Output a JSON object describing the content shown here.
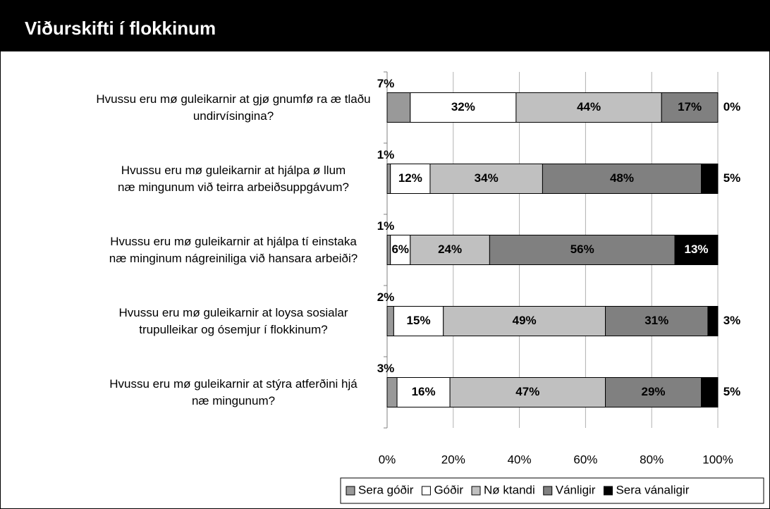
{
  "chart_data": {
    "type": "stacked_barh",
    "title": "Viðurskifti í flokkinum",
    "categories": [
      "Hvussu eru mø guleikarnir at gjø gnumfø ra æ tlaðu\nundirvísingina?",
      "Hvussu eru mø guleikarnir at hjálpa ø llum\nnæ mingunum við teirra arbeiðsuppgávum?",
      "Hvussu eru mø guleikarnir at hjálpa tí einstaka\nnæ minginum nágreiniliga við hansara arbeiði?",
      "Hvussu eru mø guleikarnir at loysa sosialar\ntrupulleikar og ósemjur í flokkinum?",
      "Hvussu eru mø guleikarnir at stýra atferðini hjá\nnæ mingunum?"
    ],
    "series": [
      {
        "name": "Sera góðir",
        "color": "#999999",
        "values": [
          7,
          1,
          1,
          2,
          3
        ],
        "value_labels": [
          "7%",
          "1%",
          "1%",
          "2%",
          "3%"
        ]
      },
      {
        "name": "Góðir",
        "color": "#ffffff",
        "values": [
          32,
          12,
          6,
          15,
          16
        ],
        "value_labels": [
          "32%",
          "12%",
          "6%",
          "15%",
          "16%"
        ]
      },
      {
        "name": "Nø ktandi",
        "color": "#c0c0c0",
        "values": [
          44,
          34,
          24,
          49,
          47
        ],
        "value_labels": [
          "44%",
          "34%",
          "24%",
          "49%",
          "47%"
        ]
      },
      {
        "name": "Vánligir",
        "color": "#808080",
        "values": [
          17,
          48,
          56,
          31,
          29
        ],
        "value_labels": [
          "17%",
          "48%",
          "56%",
          "31%",
          "29%"
        ]
      },
      {
        "name": "Sera vánaligir",
        "color": "#000000",
        "values": [
          0,
          5,
          13,
          3,
          5
        ],
        "value_labels": [
          "0%",
          "5%",
          "13%",
          "3%",
          "5%"
        ]
      }
    ],
    "xlim": [
      0,
      100
    ],
    "xticks": [
      {
        "value": 0,
        "label": "0%"
      },
      {
        "value": 20,
        "label": "20%"
      },
      {
        "value": 40,
        "label": "40%"
      },
      {
        "value": 60,
        "label": "60%"
      },
      {
        "value": 80,
        "label": "80%"
      },
      {
        "value": 100,
        "label": "100%"
      }
    ],
    "grid": true,
    "legend": "bottom"
  }
}
